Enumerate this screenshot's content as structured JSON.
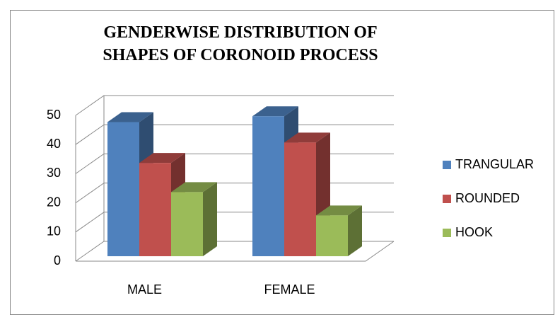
{
  "chart_data": {
    "type": "bar3d",
    "title": "GENDERWISE DISTRIBUTION OF SHAPES OF CORONOID PROCESS",
    "categories": [
      "MALE",
      "FEMALE"
    ],
    "series": [
      {
        "name": "TRANGULAR",
        "color": "#4f81bd",
        "values": [
          46,
          48
        ]
      },
      {
        "name": "ROUNDED",
        "color": "#c0504d",
        "values": [
          32,
          39
        ]
      },
      {
        "name": "HOOK",
        "color": "#9bbb59",
        "values": [
          22,
          14
        ]
      }
    ],
    "ylim": [
      0,
      50
    ],
    "yticks": [
      0,
      10,
      20,
      30,
      40,
      50
    ],
    "grid": true,
    "legend": "right"
  }
}
